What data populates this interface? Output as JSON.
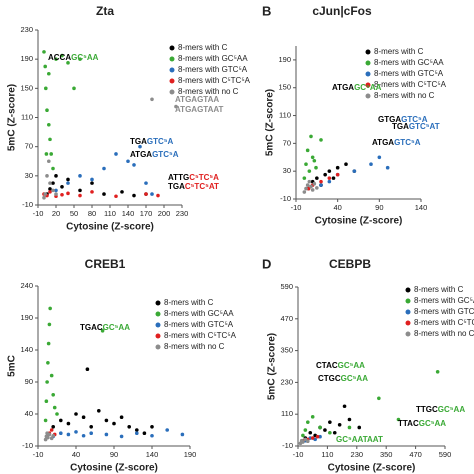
{
  "chart_data": [
    {
      "type": "scatter",
      "title": "Zta",
      "xlabel": "Cytosine (Z-score)",
      "ylabel": "5mC (Z-score)",
      "xlim": [
        -10,
        230
      ],
      "ylim": [
        -10,
        230
      ],
      "xticks": [
        -10,
        20,
        50,
        80,
        110,
        140,
        170,
        200,
        230
      ],
      "yticks": [
        -10,
        30,
        70,
        110,
        150,
        190,
        230
      ],
      "series": [
        {
          "name": "8-mers with C",
          "color": "#000000",
          "x": [
            5,
            10,
            15,
            20,
            30,
            40,
            60,
            80,
            100,
            130,
            150,
            170
          ],
          "y": [
            5,
            12,
            20,
            30,
            15,
            25,
            10,
            20,
            5,
            8,
            3,
            5
          ]
        },
        {
          "name": "8-mers with GC⁵AA",
          "color": "#3aa935",
          "x": [
            0,
            2,
            3,
            5,
            8,
            10,
            12,
            15,
            20,
            30,
            40,
            50,
            60,
            8,
            4
          ],
          "y": [
            200,
            180,
            150,
            120,
            100,
            80,
            60,
            40,
            190,
            195,
            185,
            150,
            190,
            170,
            60
          ]
        },
        {
          "name": "8-mers with GTC⁵A",
          "color": "#2a6ebb",
          "x": [
            20,
            40,
            60,
            80,
            100,
            120,
            140,
            150,
            160,
            170,
            180
          ],
          "y": [
            10,
            20,
            30,
            25,
            40,
            60,
            50,
            45,
            70,
            20,
            5
          ]
        },
        {
          "name": "8-mers with C⁵TC⁵A",
          "color": "#e02020",
          "x": [
            0,
            5,
            10,
            20,
            30,
            40,
            60,
            80,
            120,
            170,
            190
          ],
          "y": [
            5,
            3,
            8,
            2,
            4,
            6,
            3,
            8,
            2,
            5,
            3
          ]
        },
        {
          "name": "8-mers with no C",
          "color": "#8c8c8c",
          "x": [
            0,
            2,
            5,
            8,
            10,
            15,
            20,
            180,
            220
          ],
          "y": [
            0,
            5,
            30,
            50,
            20,
            10,
            5,
            135,
            125
          ]
        }
      ],
      "annotations": [
        {
          "text": "ACCA",
          "highlight": "GC⁵AA",
          "color": "#3aa935"
        },
        {
          "text": "ATGAGTAA",
          "highlight": "",
          "color": "#8c8c8c"
        },
        {
          "text": "ATGAGTAAT",
          "highlight": "",
          "color": "#8c8c8c"
        },
        {
          "text": "TGA",
          "highlight": "GTC⁵A",
          "color": "#2a6ebb"
        },
        {
          "text": "ATGA",
          "highlight": "GTC⁵A",
          "color": "#2a6ebb"
        },
        {
          "text": "ATTG",
          "highlight": "C⁵TC⁵A",
          "color": "#e02020"
        },
        {
          "text": "TGA",
          "highlight": "C⁵TC⁵AT",
          "color": "#e02020"
        }
      ]
    },
    {
      "type": "scatter",
      "title": "cJun|cFos",
      "panel": "B",
      "xlabel": "Cytosine (Z-score)",
      "ylabel": "5mC (Z-score)",
      "xlim": [
        -10,
        140
      ],
      "ylim": [
        -10,
        210
      ],
      "xticks": [
        -10,
        40,
        90,
        140
      ],
      "yticks": [
        -10,
        30,
        70,
        110,
        150,
        190
      ],
      "series": [
        {
          "name": "8-mers with C",
          "color": "#000000",
          "x": [
            5,
            10,
            15,
            20,
            25,
            30,
            35,
            40,
            50,
            60
          ],
          "y": [
            5,
            15,
            20,
            10,
            25,
            30,
            20,
            35,
            40,
            30
          ]
        },
        {
          "name": "8-mers with GC⁵AA",
          "color": "#3aa935",
          "x": [
            0,
            2,
            4,
            6,
            8,
            10,
            12,
            14,
            20
          ],
          "y": [
            20,
            40,
            60,
            30,
            80,
            50,
            45,
            35,
            75
          ]
        },
        {
          "name": "8-mers with GTC⁵A",
          "color": "#2a6ebb",
          "x": [
            20,
            30,
            40,
            60,
            80,
            90,
            100
          ],
          "y": [
            10,
            15,
            25,
            30,
            40,
            50,
            35
          ]
        },
        {
          "name": "8-mers with C⁵TC⁵A",
          "color": "#e02020",
          "x": [
            5,
            10,
            20,
            30,
            40
          ],
          "y": [
            5,
            10,
            15,
            20,
            25
          ]
        },
        {
          "name": "8-mers with no C",
          "color": "#8c8c8c",
          "x": [
            0,
            2,
            4,
            6,
            8,
            10,
            12,
            15
          ],
          "y": [
            0,
            5,
            10,
            15,
            8,
            3,
            12,
            6
          ]
        }
      ],
      "annotations": [
        {
          "text": "ATGA",
          "highlight": "GC⁵AA",
          "color": "#3aa935"
        },
        {
          "text": "GTGA",
          "highlight": "GTC⁵A",
          "color": "#2a6ebb"
        },
        {
          "text": "TGA",
          "highlight": "GTC⁵AT",
          "color": "#2a6ebb"
        },
        {
          "text": "ATGA",
          "highlight": "GTC⁵A",
          "color": "#2a6ebb"
        }
      ]
    },
    {
      "type": "scatter",
      "title": "CREB1",
      "xlabel": "Cytosine (Z-score)",
      "ylabel": "5mC",
      "xlim": [
        -10,
        190
      ],
      "ylim": [
        -10,
        240
      ],
      "xticks": [
        -10,
        40,
        90,
        140,
        190
      ],
      "yticks": [
        -10,
        40,
        90,
        140,
        190,
        240
      ],
      "series": [
        {
          "name": "8-mers with C",
          "color": "#000000",
          "x": [
            10,
            20,
            30,
            40,
            50,
            60,
            70,
            80,
            90,
            100,
            110,
            120,
            130,
            140,
            55
          ],
          "y": [
            20,
            30,
            25,
            40,
            35,
            20,
            45,
            30,
            25,
            35,
            20,
            15,
            10,
            20,
            110
          ]
        },
        {
          "name": "8-mers with GC⁵AA",
          "color": "#3aa935",
          "x": [
            0,
            1,
            2,
            3,
            4,
            5,
            6,
            8,
            10,
            12,
            15,
            75
          ],
          "y": [
            30,
            60,
            90,
            120,
            150,
            180,
            205,
            100,
            70,
            50,
            40,
            170
          ]
        },
        {
          "name": "8-mers with GTC⁵A",
          "color": "#2a6ebb",
          "x": [
            10,
            20,
            30,
            40,
            50,
            60,
            80,
            100,
            120,
            140,
            160,
            180
          ],
          "y": [
            5,
            10,
            8,
            12,
            6,
            10,
            8,
            5,
            10,
            6,
            15,
            8
          ]
        },
        {
          "name": "8-mers with C⁵TC⁵A",
          "color": "#e02020",
          "x": [
            2,
            5,
            8,
            12
          ],
          "y": [
            5,
            10,
            15,
            8
          ]
        },
        {
          "name": "8-mers with no C",
          "color": "#8c8c8c",
          "x": [
            0,
            1,
            2,
            3,
            5,
            8,
            10
          ],
          "y": [
            0,
            5,
            10,
            3,
            8,
            2,
            6
          ]
        }
      ],
      "annotations": [
        {
          "text": "TGAC",
          "highlight": "GC⁵AA",
          "color": "#3aa935"
        }
      ]
    },
    {
      "type": "scatter",
      "title": "CEBPB",
      "panel": "D",
      "xlabel": "Cytosine (Z-score)",
      "ylabel": "5mC (Z-score)",
      "xlim": [
        -10,
        590
      ],
      "ylim": [
        -10,
        590
      ],
      "xticks": [
        -10,
        110,
        230,
        350,
        470,
        590
      ],
      "yticks": [
        -10,
        110,
        230,
        350,
        470,
        590
      ],
      "series": [
        {
          "name": "8-mers with C",
          "color": "#000000",
          "x": [
            20,
            40,
            60,
            80,
            100,
            120,
            140,
            160,
            200,
            240,
            180
          ],
          "y": [
            20,
            40,
            30,
            60,
            50,
            80,
            40,
            70,
            90,
            60,
            140
          ]
        },
        {
          "name": "8-mers with GC⁵AA",
          "color": "#3aa935",
          "x": [
            10,
            20,
            30,
            50,
            80,
            120,
            200,
            320,
            560,
            400
          ],
          "y": [
            30,
            50,
            80,
            100,
            60,
            40,
            60,
            170,
            270,
            90
          ]
        },
        {
          "name": "8-mers with GTC⁵A",
          "color": "#2a6ebb",
          "x": [
            20,
            40,
            60,
            80
          ],
          "y": [
            10,
            20,
            15,
            25
          ]
        },
        {
          "name": "8-mers with C⁵TC⁵A",
          "color": "#e02020",
          "x": [
            10,
            30,
            50,
            70
          ],
          "y": [
            10,
            15,
            20,
            25
          ]
        },
        {
          "name": "8-mers with no C",
          "color": "#8c8c8c",
          "x": [
            0,
            5,
            10,
            20,
            30
          ],
          "y": [
            0,
            10,
            5,
            15,
            8
          ]
        }
      ],
      "annotations": [
        {
          "text": "CTAC",
          "highlight": "GC⁵AA",
          "color": "#3aa935"
        },
        {
          "text": "CTGC",
          "highlight": "GC⁵AA",
          "color": "#3aa935"
        },
        {
          "text": "TTGC",
          "highlight": "GC⁵AA",
          "color": "#3aa935"
        },
        {
          "text": "TTAC",
          "highlight": "GC⁵AA",
          "color": "#3aa935"
        },
        {
          "text": "",
          "highlight": "GC⁵AATAAT",
          "color": "#3aa935"
        }
      ]
    }
  ]
}
